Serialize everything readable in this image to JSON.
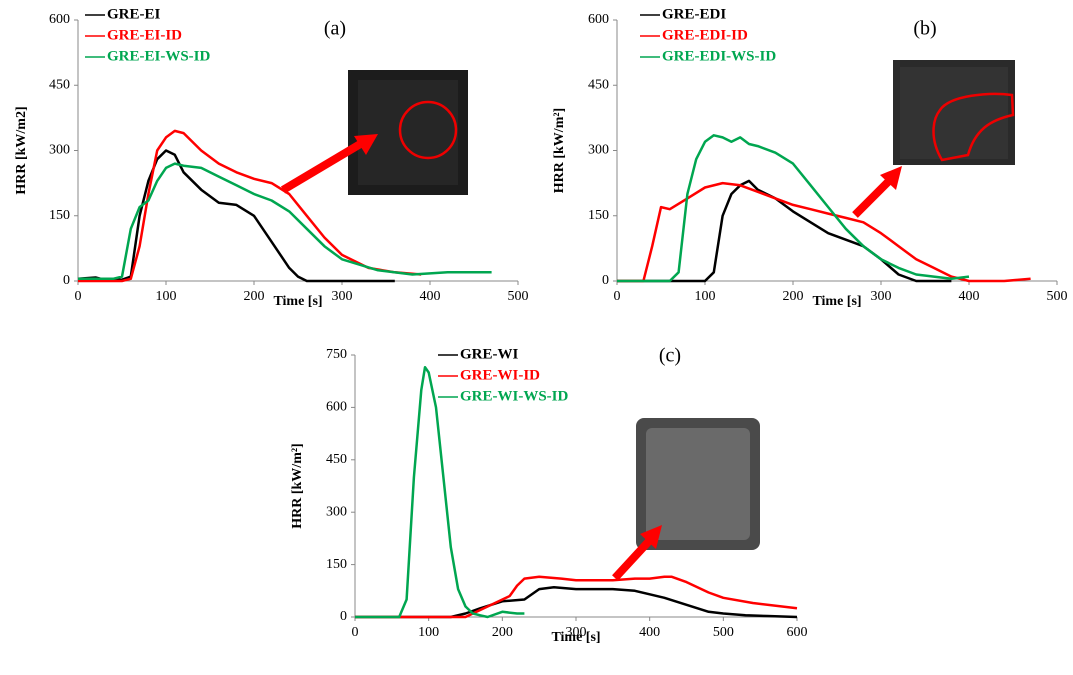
{
  "chart_data": [
    {
      "type": "line",
      "annotation": "(a)",
      "xlabel": "Time [s]",
      "ylabel": "HRR [kW/m2]",
      "xlim": [
        0,
        500
      ],
      "xticks": [
        0,
        100,
        200,
        300,
        400,
        500
      ],
      "ylim": [
        0,
        600
      ],
      "yticks": [
        0,
        150,
        300,
        450,
        600
      ],
      "grid": false,
      "series": [
        {
          "name": "GRE-EI",
          "color": "#000000",
          "x": [
            0,
            20,
            30,
            50,
            60,
            70,
            80,
            90,
            100,
            110,
            120,
            140,
            160,
            180,
            200,
            220,
            240,
            250,
            260,
            300,
            360
          ],
          "values": [
            5,
            8,
            3,
            3,
            10,
            150,
            230,
            280,
            300,
            290,
            250,
            210,
            180,
            175,
            150,
            90,
            30,
            10,
            0,
            0,
            0
          ]
        },
        {
          "name": "GRE-EI-ID",
          "color": "#ff0000",
          "x": [
            0,
            50,
            60,
            70,
            80,
            90,
            100,
            110,
            120,
            140,
            160,
            180,
            200,
            220,
            240,
            260,
            280,
            300,
            330,
            360,
            390
          ],
          "values": [
            0,
            0,
            5,
            80,
            200,
            300,
            330,
            345,
            340,
            300,
            270,
            250,
            235,
            225,
            200,
            150,
            100,
            60,
            30,
            20,
            15
          ]
        },
        {
          "name": "GRE-EI-WS-ID",
          "color": "#00a650",
          "x": [
            0,
            40,
            50,
            60,
            70,
            80,
            90,
            100,
            110,
            120,
            140,
            160,
            180,
            200,
            220,
            240,
            260,
            280,
            300,
            340,
            380,
            420,
            470
          ],
          "values": [
            5,
            5,
            10,
            120,
            170,
            185,
            230,
            260,
            270,
            265,
            260,
            240,
            220,
            200,
            185,
            160,
            120,
            80,
            50,
            25,
            15,
            20,
            20
          ]
        }
      ]
    },
    {
      "type": "line",
      "annotation": "(b)",
      "xlabel": "Time [s]",
      "ylabel": "HRR [kW/m²]",
      "xlim": [
        0,
        500
      ],
      "xticks": [
        0,
        100,
        200,
        300,
        400,
        500
      ],
      "ylim": [
        0,
        600
      ],
      "yticks": [
        0,
        150,
        300,
        450,
        600
      ],
      "grid": false,
      "series": [
        {
          "name": "GRE-EDI",
          "color": "#000000",
          "x": [
            0,
            100,
            110,
            120,
            130,
            140,
            150,
            160,
            180,
            200,
            220,
            240,
            260,
            280,
            300,
            320,
            340,
            380
          ],
          "values": [
            0,
            0,
            20,
            150,
            200,
            220,
            230,
            210,
            190,
            160,
            135,
            110,
            95,
            80,
            50,
            15,
            0,
            0
          ]
        },
        {
          "name": "GRE-EDI-ID",
          "color": "#ff0000",
          "x": [
            0,
            30,
            40,
            50,
            60,
            80,
            100,
            120,
            140,
            160,
            180,
            200,
            220,
            240,
            260,
            280,
            300,
            320,
            340,
            360,
            380,
            400,
            440,
            470
          ],
          "values": [
            0,
            0,
            80,
            170,
            165,
            190,
            215,
            225,
            220,
            205,
            190,
            175,
            165,
            155,
            145,
            135,
            110,
            80,
            50,
            30,
            10,
            0,
            0,
            5
          ]
        },
        {
          "name": "GRE-EDI-WS-ID",
          "color": "#00a650",
          "x": [
            0,
            60,
            70,
            80,
            90,
            100,
            110,
            120,
            130,
            140,
            150,
            160,
            180,
            200,
            220,
            240,
            260,
            280,
            300,
            320,
            340,
            360,
            380,
            400
          ],
          "values": [
            0,
            0,
            20,
            200,
            280,
            320,
            335,
            330,
            320,
            330,
            315,
            310,
            295,
            270,
            220,
            170,
            120,
            80,
            50,
            30,
            15,
            10,
            5,
            10
          ]
        }
      ]
    },
    {
      "type": "line",
      "annotation": "(c)",
      "xlabel": "Time [s]",
      "ylabel": "HRR [kW/m²]",
      "xlim": [
        0,
        600
      ],
      "xticks": [
        0,
        100,
        200,
        300,
        400,
        500,
        600
      ],
      "ylim": [
        0,
        750
      ],
      "yticks": [
        0,
        150,
        300,
        450,
        600,
        750
      ],
      "grid": false,
      "series": [
        {
          "name": "GRE-WI",
          "color": "#000000",
          "x": [
            0,
            130,
            150,
            170,
            200,
            230,
            250,
            270,
            300,
            350,
            380,
            400,
            420,
            450,
            480,
            500,
            530,
            560,
            600
          ],
          "values": [
            0,
            0,
            10,
            25,
            45,
            50,
            80,
            85,
            80,
            80,
            75,
            65,
            55,
            35,
            15,
            10,
            5,
            3,
            0
          ]
        },
        {
          "name": "GRE-WI-ID",
          "color": "#ff0000",
          "x": [
            0,
            150,
            170,
            190,
            210,
            220,
            230,
            250,
            280,
            300,
            350,
            380,
            400,
            420,
            430,
            450,
            480,
            500,
            540,
            600
          ],
          "values": [
            0,
            0,
            20,
            40,
            60,
            90,
            110,
            115,
            110,
            105,
            105,
            110,
            110,
            115,
            115,
            100,
            70,
            55,
            40,
            25
          ]
        },
        {
          "name": "GRE-WI-WS-ID",
          "color": "#00a650",
          "x": [
            0,
            60,
            70,
            80,
            90,
            95,
            100,
            110,
            120,
            130,
            140,
            150,
            160,
            170,
            180,
            200,
            220,
            230
          ],
          "values": [
            0,
            0,
            50,
            400,
            650,
            715,
            700,
            600,
            400,
            200,
            80,
            30,
            10,
            5,
            0,
            15,
            10,
            10
          ]
        }
      ]
    }
  ]
}
